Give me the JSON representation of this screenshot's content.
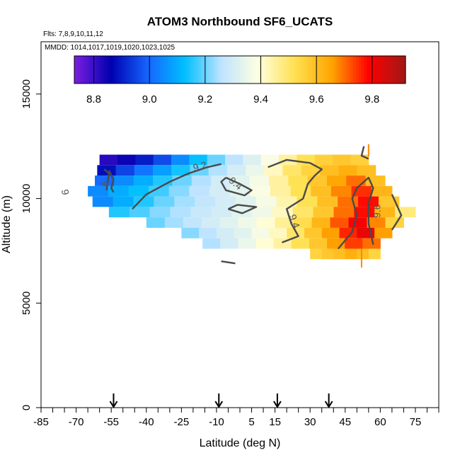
{
  "chart_data": {
    "type": "heatmap",
    "title": "ATOM3 Northbound SF6_UCATS",
    "flights_note": "Flts: 7,8,9,10,11,12",
    "dates_note": "MMDD: 1014,1017,1019,1020,1023,1025",
    "xlabel": "Latitude (deg N)",
    "ylabel": "Altitude (m)",
    "xlim": [
      -85,
      85
    ],
    "ylim": [
      0,
      17500
    ],
    "x_ticks": [
      -85,
      -70,
      -55,
      -40,
      -25,
      -10,
      5,
      15,
      30,
      45,
      60,
      75
    ],
    "y_ticks": [
      0,
      5000,
      10000,
      15000
    ],
    "colorbar": {
      "min": 8.73,
      "max": 9.92,
      "ticks": [
        8.8,
        9.0,
        9.2,
        9.4,
        9.6,
        9.8
      ],
      "colors": [
        "#7b1fe0",
        "#0000b0",
        "#1565ff",
        "#00bfff",
        "#bfe4ff",
        "#ffffe0",
        "#ffe050",
        "#ffa500",
        "#ff0000",
        "#a01818"
      ]
    },
    "arrow_latitudes": [
      -54,
      -9,
      16,
      38
    ],
    "bands": [
      {
        "alt_low": 11600,
        "alt_high": 12100,
        "x_start": -60,
        "x_end": 55,
        "values": [
          8.82,
          8.85,
          8.9,
          8.96,
          9.05,
          9.13,
          9.2,
          9.26,
          9.32,
          9.38,
          9.45,
          9.52,
          9.56,
          9.58,
          9.56
        ]
      },
      {
        "alt_low": 11100,
        "alt_high": 11600,
        "x_start": -61,
        "x_end": 58,
        "values": [
          8.88,
          8.95,
          9.02,
          9.08,
          9.14,
          9.2,
          9.25,
          9.3,
          9.35,
          9.42,
          9.5,
          9.55,
          9.6,
          9.63,
          9.6
        ]
      },
      {
        "alt_low": 10600,
        "alt_high": 11100,
        "x_start": -62,
        "x_end": 62,
        "values": [
          9.0,
          9.05,
          9.1,
          9.15,
          9.2,
          9.25,
          9.3,
          9.33,
          9.37,
          9.45,
          9.52,
          9.58,
          9.65,
          9.7,
          9.6
        ]
      },
      {
        "alt_low": 10100,
        "alt_high": 10600,
        "x_start": -65,
        "x_end": 65,
        "values": [
          9.05,
          9.1,
          9.13,
          9.17,
          9.22,
          9.26,
          9.3,
          9.33,
          9.38,
          9.45,
          9.52,
          9.6,
          9.68,
          9.75,
          9.62
        ]
      },
      {
        "alt_low": 9600,
        "alt_high": 10100,
        "x_start": -63,
        "x_end": 68,
        "values": [
          9.05,
          9.1,
          9.15,
          9.2,
          9.24,
          9.27,
          9.3,
          9.33,
          9.37,
          9.44,
          9.52,
          9.6,
          9.7,
          9.78,
          9.58
        ]
      },
      {
        "alt_low": 9100,
        "alt_high": 9600,
        "x_start": -56,
        "x_end": 75,
        "values": [
          9.15,
          9.18,
          9.22,
          9.25,
          9.28,
          9.3,
          9.33,
          9.36,
          9.42,
          9.5,
          9.58,
          9.7,
          9.78,
          9.62,
          9.48
        ]
      },
      {
        "alt_low": 8600,
        "alt_high": 9100,
        "x_start": -40,
        "x_end": 70,
        "values": [
          9.2,
          9.24,
          9.27,
          9.3,
          9.33,
          9.36,
          9.4,
          9.46,
          9.53,
          9.62,
          9.72,
          9.8,
          9.68,
          9.55
        ]
      },
      {
        "alt_low": 8100,
        "alt_high": 8600,
        "x_start": -25,
        "x_end": 65,
        "values": [
          9.22,
          9.26,
          9.3,
          9.33,
          9.37,
          9.42,
          9.5,
          9.58,
          9.66,
          9.76,
          9.82,
          9.66
        ]
      },
      {
        "alt_low": 7600,
        "alt_high": 8100,
        "x_start": -16,
        "x_end": 60,
        "values": [
          9.25,
          9.3,
          9.35,
          9.4,
          9.45,
          9.52,
          9.58,
          9.66,
          9.74,
          9.7
        ]
      },
      {
        "alt_low": 7100,
        "alt_high": 7600,
        "x_start": 30,
        "x_end": 60,
        "values": [
          9.55,
          9.58,
          9.6,
          9.63,
          9.6,
          9.55
        ]
      }
    ],
    "contours": [
      {
        "level": 9.0,
        "points": [
          [
            -56,
            11350
          ],
          [
            -54,
            10900
          ],
          [
            -55,
            10500
          ],
          [
            -54,
            10300
          ]
        ]
      },
      {
        "level": 9.2,
        "points": [
          [
            -46,
            9500
          ],
          [
            -40,
            10200
          ],
          [
            -30,
            10800
          ],
          [
            -22,
            11200
          ],
          [
            -14,
            11500
          ],
          [
            -8,
            11650
          ]
        ]
      },
      {
        "level": 9.2,
        "points": [
          [
            -58,
            11400
          ],
          [
            -56,
            11200
          ],
          [
            -57,
            10400
          ]
        ]
      },
      {
        "level": 9.4,
        "points": [
          [
            -6,
            11000
          ],
          [
            0,
            10700
          ],
          [
            5,
            10400
          ],
          [
            2,
            10150
          ],
          [
            -6,
            10400
          ],
          [
            -8,
            10800
          ],
          [
            -6,
            11000
          ]
        ]
      },
      {
        "level": 9.4,
        "points": [
          [
            -5,
            9500
          ],
          [
            1,
            9300
          ],
          [
            7,
            9600
          ],
          [
            -1,
            9700
          ],
          [
            -5,
            9500
          ]
        ]
      },
      {
        "level": 9.4,
        "points": [
          [
            12,
            11500
          ],
          [
            20,
            11850
          ],
          [
            30,
            11700
          ],
          [
            35,
            11400
          ],
          [
            32,
            11100
          ],
          [
            29,
            10700
          ],
          [
            27,
            10000
          ],
          [
            20,
            9500
          ],
          [
            22,
            8800
          ],
          [
            25,
            8200
          ],
          [
            18,
            7900
          ]
        ]
      },
      {
        "level": 9.4,
        "points": [
          [
            -8,
            7000
          ],
          [
            -2,
            6900
          ]
        ]
      },
      {
        "level": 9.6,
        "points": [
          [
            53,
            12500
          ],
          [
            52,
            12050
          ],
          [
            55,
            11900
          ]
        ]
      },
      {
        "level": 9.6,
        "points": [
          [
            42,
            7600
          ],
          [
            48,
            8400
          ],
          [
            50,
            9200
          ],
          [
            48,
            10000
          ],
          [
            50,
            10500
          ],
          [
            55,
            11000
          ],
          [
            57,
            10500
          ],
          [
            55,
            9800
          ],
          [
            55,
            8800
          ],
          [
            57,
            7800
          ]
        ]
      },
      {
        "level": 9.6,
        "points": [
          [
            65,
            10200
          ],
          [
            67,
            9700
          ],
          [
            69,
            9200
          ],
          [
            65,
            8500
          ]
        ]
      }
    ],
    "contour_labels": [
      {
        "text": "9",
        "x": -58,
        "y": 10700,
        "rotate": 80
      },
      {
        "text": "9.2",
        "x": -17,
        "y": 11500,
        "rotate": -15
      },
      {
        "text": "9.4",
        "x": -2,
        "y": 10700,
        "rotate": 40
      },
      {
        "text": "9.4",
        "x": 23,
        "y": 8900,
        "rotate": 70
      },
      {
        "text": "9.6",
        "x": 59,
        "y": 9400,
        "rotate": -90
      }
    ],
    "left_edge_labels": [
      {
        "text": "9",
        "x": -75,
        "y": 10300,
        "rotate": 80
      }
    ],
    "spikes": [
      {
        "x": 52,
        "y_low": 6700,
        "y_high": 7600,
        "color": "#ff8800"
      },
      {
        "x": 55,
        "y_low": 12000,
        "y_high": 12600,
        "color": "#ff8800"
      }
    ]
  }
}
